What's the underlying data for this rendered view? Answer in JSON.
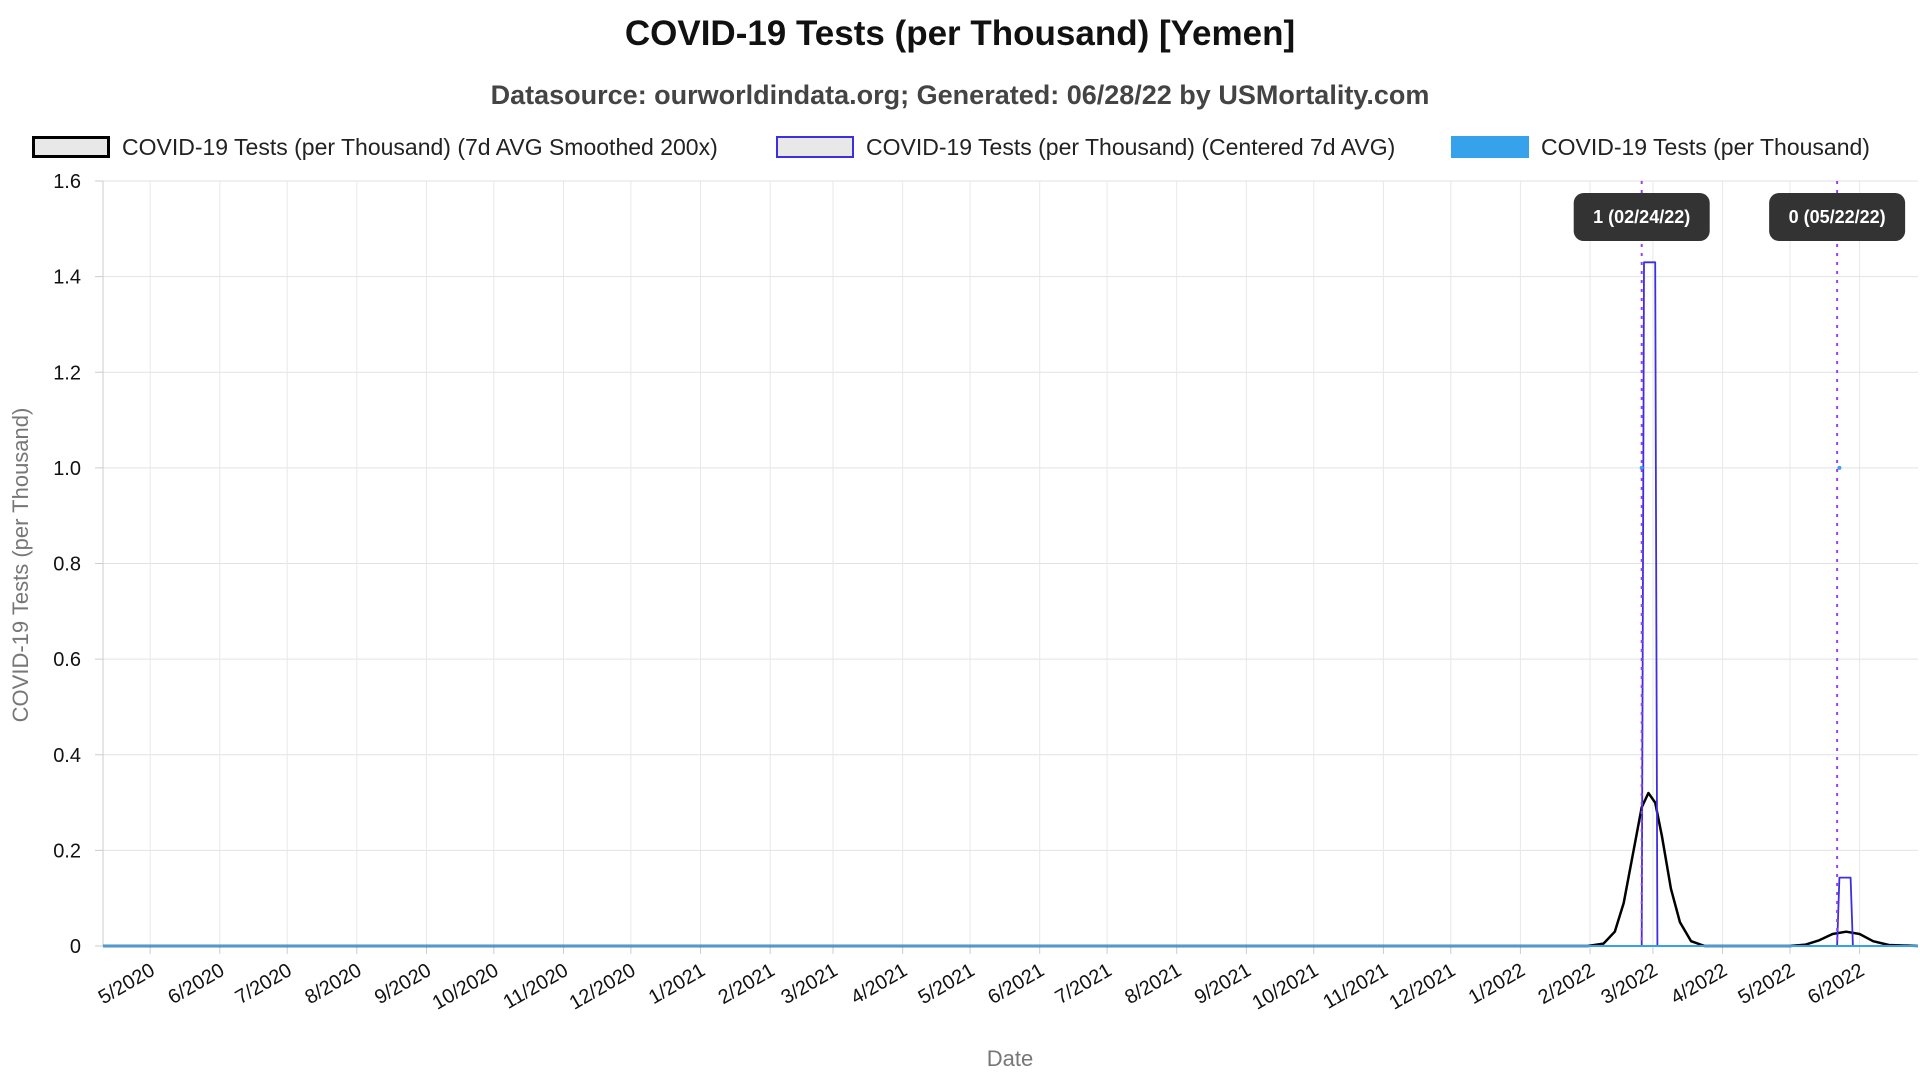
{
  "chart_data": {
    "type": "line",
    "title": "COVID-19 Tests (per Thousand) [Yemen]",
    "subtitle": "Datasource: ourworldindata.org; Generated: 06/28/22 by USMortality.com",
    "xlabel": "Date",
    "ylabel": "COVID-19 Tests (per Thousand)",
    "x_range": [
      "2020-04-10",
      "2022-06-27"
    ],
    "ylim": [
      0,
      1.6
    ],
    "y_ticks": [
      "0",
      "0.2",
      "0.4",
      "0.6",
      "0.8",
      "1.0",
      "1.2",
      "1.4",
      "1.6"
    ],
    "x_ticks": [
      "5/2020",
      "6/2020",
      "7/2020",
      "8/2020",
      "9/2020",
      "10/2020",
      "11/2020",
      "12/2020",
      "1/2021",
      "2/2021",
      "3/2021",
      "4/2021",
      "5/2021",
      "6/2021",
      "7/2021",
      "8/2021",
      "9/2021",
      "10/2021",
      "11/2021",
      "12/2021",
      "1/2022",
      "2/2022",
      "3/2022",
      "4/2022",
      "5/2022",
      "6/2022"
    ],
    "grid": true,
    "legend_position": "top",
    "series": [
      {
        "name": "COVID-19 Tests (per Thousand) (7d AVG Smoothed 200x)",
        "color": "#000000",
        "points": [
          [
            "2020-04-10",
            0
          ],
          [
            "2022-01-31",
            0
          ],
          [
            "2022-02-07",
            0.005
          ],
          [
            "2022-02-12",
            0.03
          ],
          [
            "2022-02-16",
            0.09
          ],
          [
            "2022-02-20",
            0.19
          ],
          [
            "2022-02-24",
            0.29
          ],
          [
            "2022-02-27",
            0.32
          ],
          [
            "2022-03-02",
            0.3
          ],
          [
            "2022-03-05",
            0.23
          ],
          [
            "2022-03-09",
            0.12
          ],
          [
            "2022-03-13",
            0.05
          ],
          [
            "2022-03-18",
            0.01
          ],
          [
            "2022-03-24",
            0
          ],
          [
            "2022-05-01",
            0
          ],
          [
            "2022-05-08",
            0.003
          ],
          [
            "2022-05-14",
            0.012
          ],
          [
            "2022-05-20",
            0.025
          ],
          [
            "2022-05-26",
            0.03
          ],
          [
            "2022-06-01",
            0.025
          ],
          [
            "2022-06-07",
            0.01
          ],
          [
            "2022-06-14",
            0.002
          ],
          [
            "2022-06-27",
            0
          ]
        ]
      },
      {
        "name": "COVID-19 Tests (per Thousand) (Centered 7d AVG)",
        "color": "#3b2fe0",
        "points": [
          [
            "2020-04-10",
            0
          ],
          [
            "2022-02-24",
            0
          ],
          [
            "2022-02-25",
            1.43
          ],
          [
            "2022-03-02",
            1.43
          ],
          [
            "2022-03-03",
            0
          ],
          [
            "2022-05-22",
            0
          ],
          [
            "2022-05-23",
            0.143
          ],
          [
            "2022-05-28",
            0.143
          ],
          [
            "2022-05-29",
            0
          ],
          [
            "2022-06-27",
            0
          ]
        ]
      },
      {
        "name": "COVID-19 Tests (per Thousand)",
        "color": "#36a2eb",
        "points": [
          [
            "2020-04-10",
            0
          ],
          [
            "2022-06-27",
            0
          ]
        ],
        "extra_points": [
          [
            "2022-02-24",
            1
          ],
          [
            "2022-05-23",
            1
          ]
        ]
      }
    ],
    "annotations": [
      {
        "date": "2022-02-24",
        "label": "1 (02/24/22)"
      },
      {
        "date": "2022-05-22",
        "label": "0 (05/22/22)"
      }
    ]
  }
}
